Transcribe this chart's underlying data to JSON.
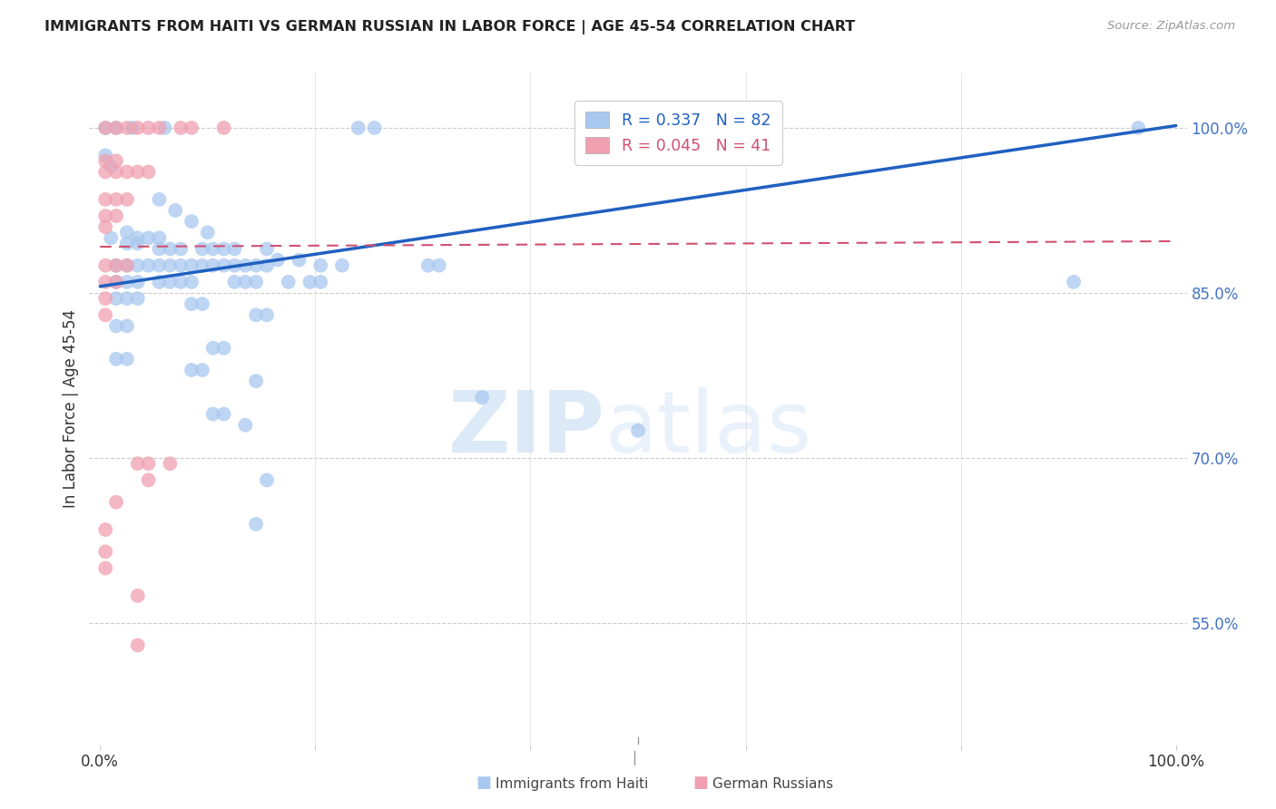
{
  "title": "IMMIGRANTS FROM HAITI VS GERMAN RUSSIAN IN LABOR FORCE | AGE 45-54 CORRELATION CHART",
  "source": "Source: ZipAtlas.com",
  "ylabel": "In Labor Force | Age 45-54",
  "ytick_labels": [
    "55.0%",
    "70.0%",
    "85.0%",
    "100.0%"
  ],
  "ytick_values": [
    0.55,
    0.7,
    0.85,
    1.0
  ],
  "xlim": [
    -0.01,
    1.01
  ],
  "ylim": [
    0.44,
    1.05
  ],
  "legend_blue_r": "R = 0.337",
  "legend_blue_n": "N = 82",
  "legend_pink_r": "R = 0.045",
  "legend_pink_n": "N = 41",
  "watermark_zip": "ZIP",
  "watermark_atlas": "atlas",
  "blue_color": "#a8c8f0",
  "blue_edge_color": "#7aaee0",
  "blue_line_color": "#2060c0",
  "pink_color": "#f0a0b0",
  "pink_edge_color": "#e07090",
  "pink_line_color": "#d05070",
  "blue_scatter": [
    [
      0.005,
      1.0
    ],
    [
      0.015,
      1.0
    ],
    [
      0.03,
      1.0
    ],
    [
      0.06,
      1.0
    ],
    [
      0.24,
      1.0
    ],
    [
      0.255,
      1.0
    ],
    [
      0.965,
      1.0
    ],
    [
      0.005,
      0.975
    ],
    [
      0.01,
      0.965
    ],
    [
      0.055,
      0.935
    ],
    [
      0.07,
      0.925
    ],
    [
      0.085,
      0.915
    ],
    [
      0.1,
      0.905
    ],
    [
      0.01,
      0.9
    ],
    [
      0.025,
      0.905
    ],
    [
      0.035,
      0.9
    ],
    [
      0.045,
      0.9
    ],
    [
      0.055,
      0.9
    ],
    [
      0.025,
      0.895
    ],
    [
      0.035,
      0.895
    ],
    [
      0.055,
      0.89
    ],
    [
      0.065,
      0.89
    ],
    [
      0.075,
      0.89
    ],
    [
      0.095,
      0.89
    ],
    [
      0.105,
      0.89
    ],
    [
      0.115,
      0.89
    ],
    [
      0.125,
      0.89
    ],
    [
      0.155,
      0.89
    ],
    [
      0.165,
      0.88
    ],
    [
      0.185,
      0.88
    ],
    [
      0.015,
      0.875
    ],
    [
      0.025,
      0.875
    ],
    [
      0.035,
      0.875
    ],
    [
      0.045,
      0.875
    ],
    [
      0.055,
      0.875
    ],
    [
      0.065,
      0.875
    ],
    [
      0.075,
      0.875
    ],
    [
      0.085,
      0.875
    ],
    [
      0.095,
      0.875
    ],
    [
      0.105,
      0.875
    ],
    [
      0.115,
      0.875
    ],
    [
      0.125,
      0.875
    ],
    [
      0.135,
      0.875
    ],
    [
      0.145,
      0.875
    ],
    [
      0.155,
      0.875
    ],
    [
      0.205,
      0.875
    ],
    [
      0.225,
      0.875
    ],
    [
      0.305,
      0.875
    ],
    [
      0.315,
      0.875
    ],
    [
      0.015,
      0.86
    ],
    [
      0.025,
      0.86
    ],
    [
      0.035,
      0.86
    ],
    [
      0.055,
      0.86
    ],
    [
      0.065,
      0.86
    ],
    [
      0.075,
      0.86
    ],
    [
      0.085,
      0.86
    ],
    [
      0.125,
      0.86
    ],
    [
      0.135,
      0.86
    ],
    [
      0.145,
      0.86
    ],
    [
      0.175,
      0.86
    ],
    [
      0.195,
      0.86
    ],
    [
      0.205,
      0.86
    ],
    [
      0.015,
      0.845
    ],
    [
      0.025,
      0.845
    ],
    [
      0.035,
      0.845
    ],
    [
      0.085,
      0.84
    ],
    [
      0.095,
      0.84
    ],
    [
      0.145,
      0.83
    ],
    [
      0.155,
      0.83
    ],
    [
      0.015,
      0.82
    ],
    [
      0.025,
      0.82
    ],
    [
      0.105,
      0.8
    ],
    [
      0.115,
      0.8
    ],
    [
      0.015,
      0.79
    ],
    [
      0.025,
      0.79
    ],
    [
      0.085,
      0.78
    ],
    [
      0.095,
      0.78
    ],
    [
      0.145,
      0.77
    ],
    [
      0.355,
      0.755
    ],
    [
      0.105,
      0.74
    ],
    [
      0.115,
      0.74
    ],
    [
      0.135,
      0.73
    ],
    [
      0.5,
      0.725
    ],
    [
      0.155,
      0.68
    ],
    [
      0.145,
      0.64
    ],
    [
      0.905,
      0.86
    ]
  ],
  "pink_scatter": [
    [
      0.005,
      1.0
    ],
    [
      0.015,
      1.0
    ],
    [
      0.025,
      1.0
    ],
    [
      0.035,
      1.0
    ],
    [
      0.045,
      1.0
    ],
    [
      0.055,
      1.0
    ],
    [
      0.075,
      1.0
    ],
    [
      0.085,
      1.0
    ],
    [
      0.115,
      1.0
    ],
    [
      0.005,
      0.97
    ],
    [
      0.015,
      0.97
    ],
    [
      0.005,
      0.96
    ],
    [
      0.015,
      0.96
    ],
    [
      0.025,
      0.96
    ],
    [
      0.035,
      0.96
    ],
    [
      0.045,
      0.96
    ],
    [
      0.005,
      0.935
    ],
    [
      0.015,
      0.935
    ],
    [
      0.025,
      0.935
    ],
    [
      0.005,
      0.92
    ],
    [
      0.015,
      0.92
    ],
    [
      0.005,
      0.91
    ],
    [
      0.005,
      0.875
    ],
    [
      0.015,
      0.875
    ],
    [
      0.025,
      0.875
    ],
    [
      0.005,
      0.86
    ],
    [
      0.015,
      0.86
    ],
    [
      0.005,
      0.845
    ],
    [
      0.005,
      0.83
    ],
    [
      0.035,
      0.695
    ],
    [
      0.045,
      0.695
    ],
    [
      0.065,
      0.695
    ],
    [
      0.045,
      0.68
    ],
    [
      0.015,
      0.66
    ],
    [
      0.005,
      0.635
    ],
    [
      0.005,
      0.615
    ],
    [
      0.005,
      0.6
    ],
    [
      0.035,
      0.575
    ],
    [
      0.035,
      0.53
    ]
  ],
  "blue_trendline": [
    [
      0.0,
      0.856
    ],
    [
      1.0,
      1.002
    ]
  ],
  "pink_trendline": [
    [
      0.0,
      0.892
    ],
    [
      1.0,
      0.897
    ]
  ],
  "xtick_positions": [
    0.0,
    0.2,
    0.4,
    0.6,
    0.8,
    1.0
  ],
  "xtick_labels": [
    "0.0%",
    "",
    "",
    "",
    "",
    "100.0%"
  ],
  "bottom_legend_label1": "Immigrants from Haiti",
  "bottom_legend_label2": "German Russians"
}
